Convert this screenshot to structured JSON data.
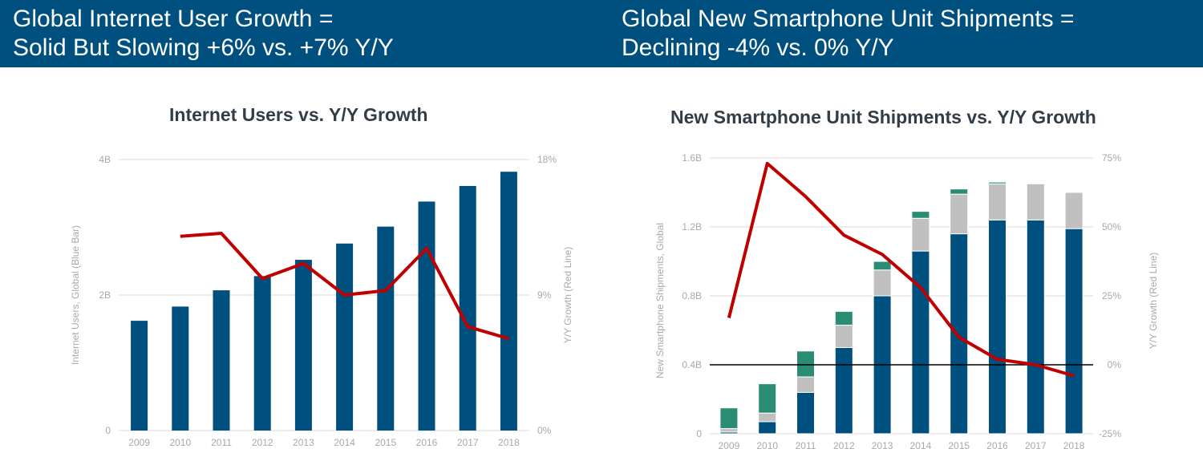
{
  "header": {
    "left_title_line1": "Global Internet User Growth =",
    "left_title_line2": "Solid But Slowing +6% vs. +7% Y/Y",
    "right_title_line1": "Global New Smartphone Unit Shipments =",
    "right_title_line2": "Declining -4% vs. 0% Y/Y"
  },
  "colors": {
    "banner": "#00507f",
    "bar_blue": "#00507f",
    "bar_gray": "#c0c0c0",
    "bar_green": "#2a8c72",
    "line_red": "#c00000"
  },
  "chart_data": [
    {
      "type": "bar",
      "title": "Internet Users vs. Y/Y Growth",
      "ylabel": "Internet Users, Global (Blue Bar)",
      "y2label": "Y/Y Growth (Red Line)",
      "categories": [
        "2009",
        "2010",
        "2011",
        "2012",
        "2013",
        "2014",
        "2015",
        "2016",
        "2017",
        "2018"
      ],
      "ylim": [
        0,
        4
      ],
      "yticks": [
        0,
        2,
        4
      ],
      "ytick_labels": [
        "0",
        "2B",
        "4B"
      ],
      "y2lim": [
        0,
        18
      ],
      "y2ticks": [
        0,
        9,
        18
      ],
      "y2tick_labels": [
        "0%",
        "9%",
        "18%"
      ],
      "grid": true,
      "series": [
        {
          "name": "Internet Users, Global (Blue Bar)",
          "values": [
            1.62,
            1.83,
            2.07,
            2.28,
            2.52,
            2.76,
            3.01,
            3.38,
            3.61,
            3.82
          ]
        },
        {
          "name": "Y/Y Growth (Red Line)",
          "axis": "right",
          "type": "line",
          "values": [
            null,
            12.9,
            13.1,
            10.1,
            11.1,
            9.0,
            9.3,
            12.1,
            6.9,
            6.1
          ]
        }
      ]
    },
    {
      "type": "bar",
      "title": "New Smartphone Unit Shipments vs. Y/Y Growth",
      "ylabel": "New Smartphone Shipments, Global",
      "y2label": "Y/Y Growth (Red Line)",
      "categories": [
        "2009",
        "2010",
        "2011",
        "2012",
        "2013",
        "2014",
        "2015",
        "2016",
        "2017",
        "2018"
      ],
      "ylim": [
        0,
        1.6
      ],
      "yticks": [
        0,
        0.4,
        0.8,
        1.2,
        1.6
      ],
      "ytick_labels": [
        "0",
        "0.4B",
        "0.8B",
        "1.2B",
        "1.6B"
      ],
      "y2lim": [
        -25,
        75
      ],
      "y2ticks": [
        -25,
        0,
        25,
        50,
        75
      ],
      "y2tick_labels": [
        "-25%",
        "0%",
        "25%",
        "50%",
        "75%"
      ],
      "grid": true,
      "stacked": true,
      "series": [
        {
          "segment": "blue",
          "values": [
            0.01,
            0.07,
            0.24,
            0.5,
            0.8,
            1.06,
            1.16,
            1.24,
            1.24,
            1.19
          ]
        },
        {
          "segment": "gray",
          "values": [
            0.02,
            0.05,
            0.09,
            0.13,
            0.15,
            0.19,
            0.23,
            0.21,
            0.21,
            0.21
          ]
        },
        {
          "segment": "green",
          "values": [
            0.12,
            0.17,
            0.15,
            0.08,
            0.05,
            0.04,
            0.03,
            0.01,
            0.0,
            0.0
          ]
        },
        {
          "name": "Y/Y Growth (Red Line)",
          "axis": "right",
          "type": "line",
          "values": [
            17,
            73,
            61,
            47,
            40,
            28,
            10,
            2,
            0,
            -4
          ]
        }
      ]
    }
  ]
}
